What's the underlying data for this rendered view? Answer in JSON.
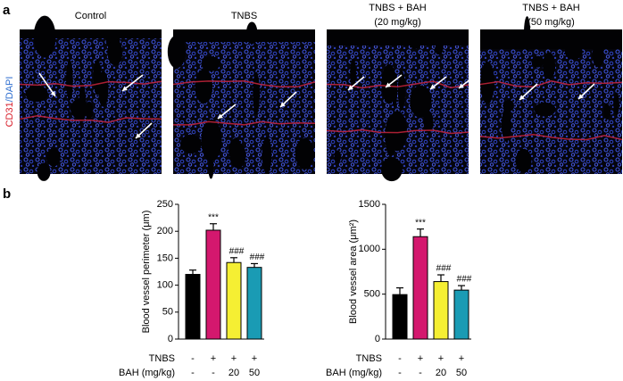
{
  "panel_labels": [
    "a",
    "b"
  ],
  "image_panel": {
    "stain_labels": [
      "CD31",
      "/DAPI"
    ],
    "columns": [
      [
        "Control"
      ],
      [
        "TNBS"
      ],
      [
        "TNBS + BAH",
        "(20 mg/kg)"
      ],
      [
        "TNBS + BAH",
        "(50 mg/kg)"
      ]
    ]
  },
  "chart_data": [
    {
      "type": "bar",
      "ylabel": "Blood  vessel  perimeter  (μm)",
      "categories": [
        null,
        null,
        null,
        null
      ],
      "values": [
        120,
        202,
        142,
        133
      ],
      "errors": [
        8,
        12,
        9,
        7
      ],
      "colors": [
        "#000000",
        "#d4186e",
        "#f5ef33",
        "#1a9bb4"
      ],
      "annotations": [
        null,
        "***",
        "###",
        "###"
      ],
      "ylim": [
        0,
        250
      ],
      "yticks": [
        0,
        50,
        100,
        150,
        200,
        250
      ],
      "x_table": [
        {
          "label": "TNBS",
          "cells": [
            "-",
            "+",
            "+",
            "+"
          ]
        },
        {
          "label": "BAH  (mg/kg)",
          "cells": [
            "-",
            "-",
            "20",
            "50"
          ]
        }
      ]
    },
    {
      "type": "bar",
      "ylabel": "Blood  vessel  area  (μm²)",
      "categories": [
        null,
        null,
        null,
        null
      ],
      "values": [
        495,
        1140,
        640,
        545
      ],
      "errors": [
        75,
        85,
        75,
        50
      ],
      "colors": [
        "#000000",
        "#d4186e",
        "#f5ef33",
        "#1a9bb4"
      ],
      "annotations": [
        null,
        "***",
        "###",
        "###"
      ],
      "ylim": [
        0,
        1500
      ],
      "yticks": [
        0,
        500,
        1000,
        1500
      ],
      "x_table": [
        {
          "label": "TNBS",
          "cells": [
            "-",
            "+",
            "+",
            "+"
          ]
        },
        {
          "label": "BAH  (mg/kg)",
          "cells": [
            "-",
            "-",
            "20",
            "50"
          ]
        }
      ]
    }
  ]
}
